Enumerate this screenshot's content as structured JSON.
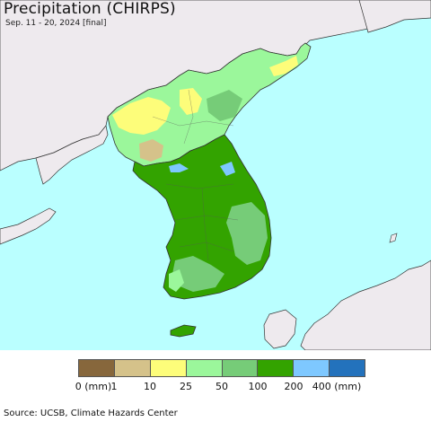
{
  "title": "Precipitation (CHIRPS)",
  "subtitle": "Sep. 11 - 20, 2024 [final]",
  "source": "Source: UCSB, Climate Hazards Center",
  "colors": {
    "sea": "#baffff",
    "foreign_land": "#eeeaee",
    "border": "#333333"
  },
  "legend": {
    "colors": [
      "#87673c",
      "#d5c28a",
      "#fdfd7a",
      "#9bf79b",
      "#76cc78",
      "#33a300",
      "#7ec8ff",
      "#2372bc"
    ],
    "ticks": [
      "0 (mm)",
      "1",
      "10",
      "25",
      "50",
      "100",
      "200",
      "400 (mm)"
    ]
  }
}
